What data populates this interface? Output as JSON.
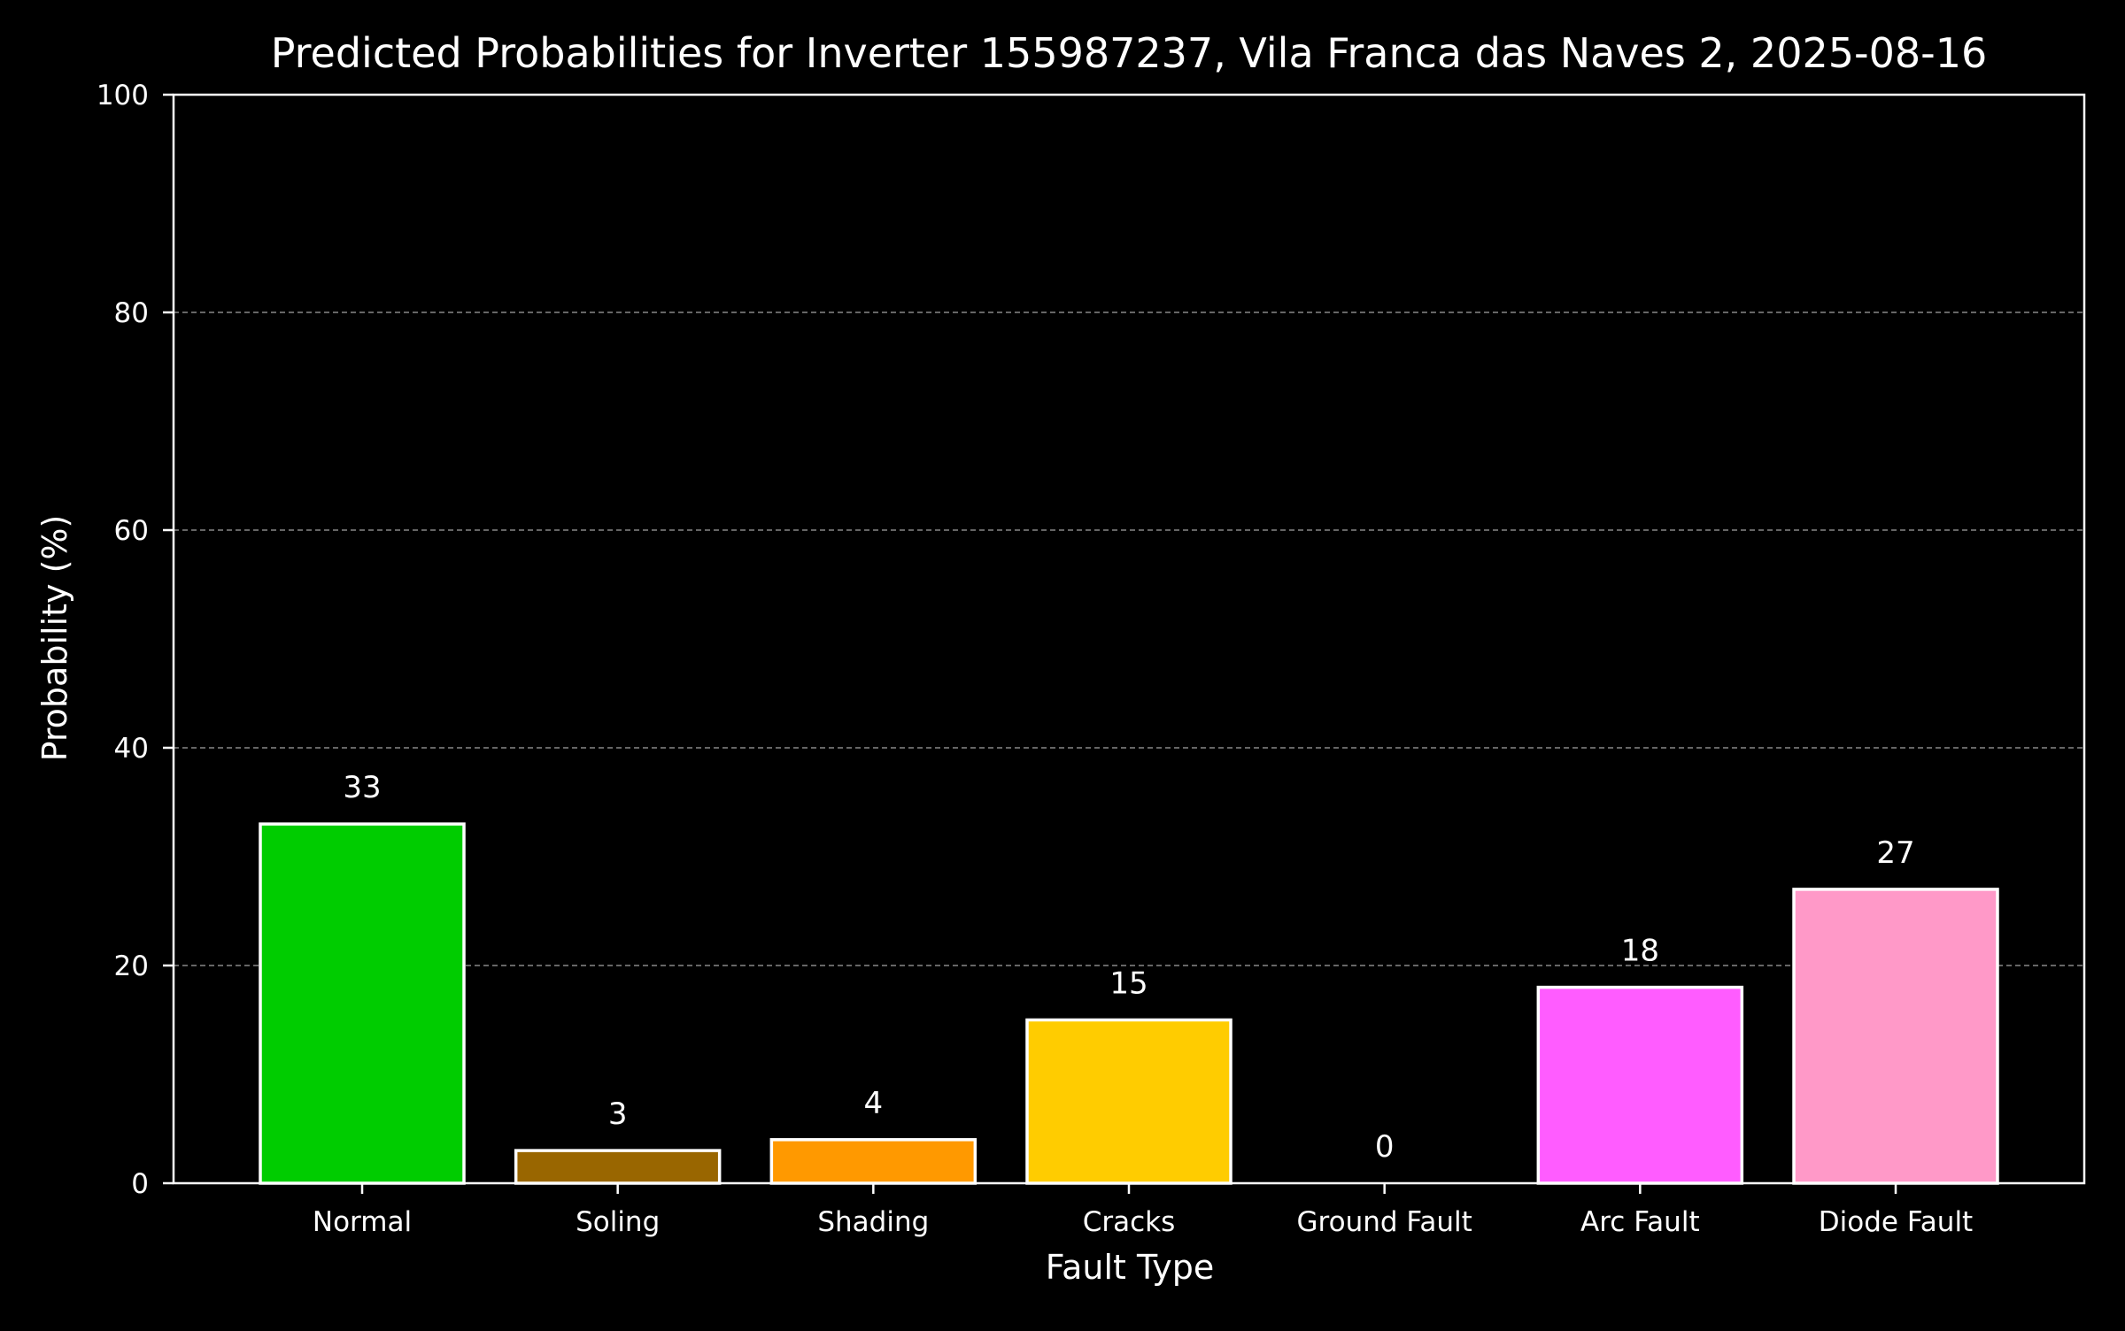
{
  "chart_data": {
    "type": "bar",
    "title": "Predicted Probabilities for Inverter 155987237, Vila Franca das Naves 2, 2025-08-16",
    "xlabel": "Fault Type",
    "ylabel": "Probability (%)",
    "categories": [
      "Normal",
      "Soling",
      "Shading",
      "Cracks",
      "Ground Fault",
      "Arc Fault",
      "Diode Fault"
    ],
    "values": [
      33,
      3,
      4,
      15,
      0,
      18,
      27
    ],
    "value_labels": [
      "33",
      "3",
      "4",
      "15",
      "0",
      "18",
      "27"
    ],
    "colors": [
      "#00cc00",
      "#996600",
      "#ff9900",
      "#ffcc00",
      "#ffffff",
      "#ff5cff",
      "#ff99c8"
    ],
    "ylim": [
      0,
      100
    ],
    "yticks": [
      0,
      20,
      40,
      60,
      80,
      100
    ],
    "ytick_labels": [
      "0",
      "20",
      "40",
      "60",
      "80",
      "100"
    ],
    "grid": true,
    "grid_axis": "y",
    "grid_style": "dashed",
    "background_color": "#000000",
    "text_color": "#ffffff",
    "bar_edge_color": "#ffffff"
  }
}
